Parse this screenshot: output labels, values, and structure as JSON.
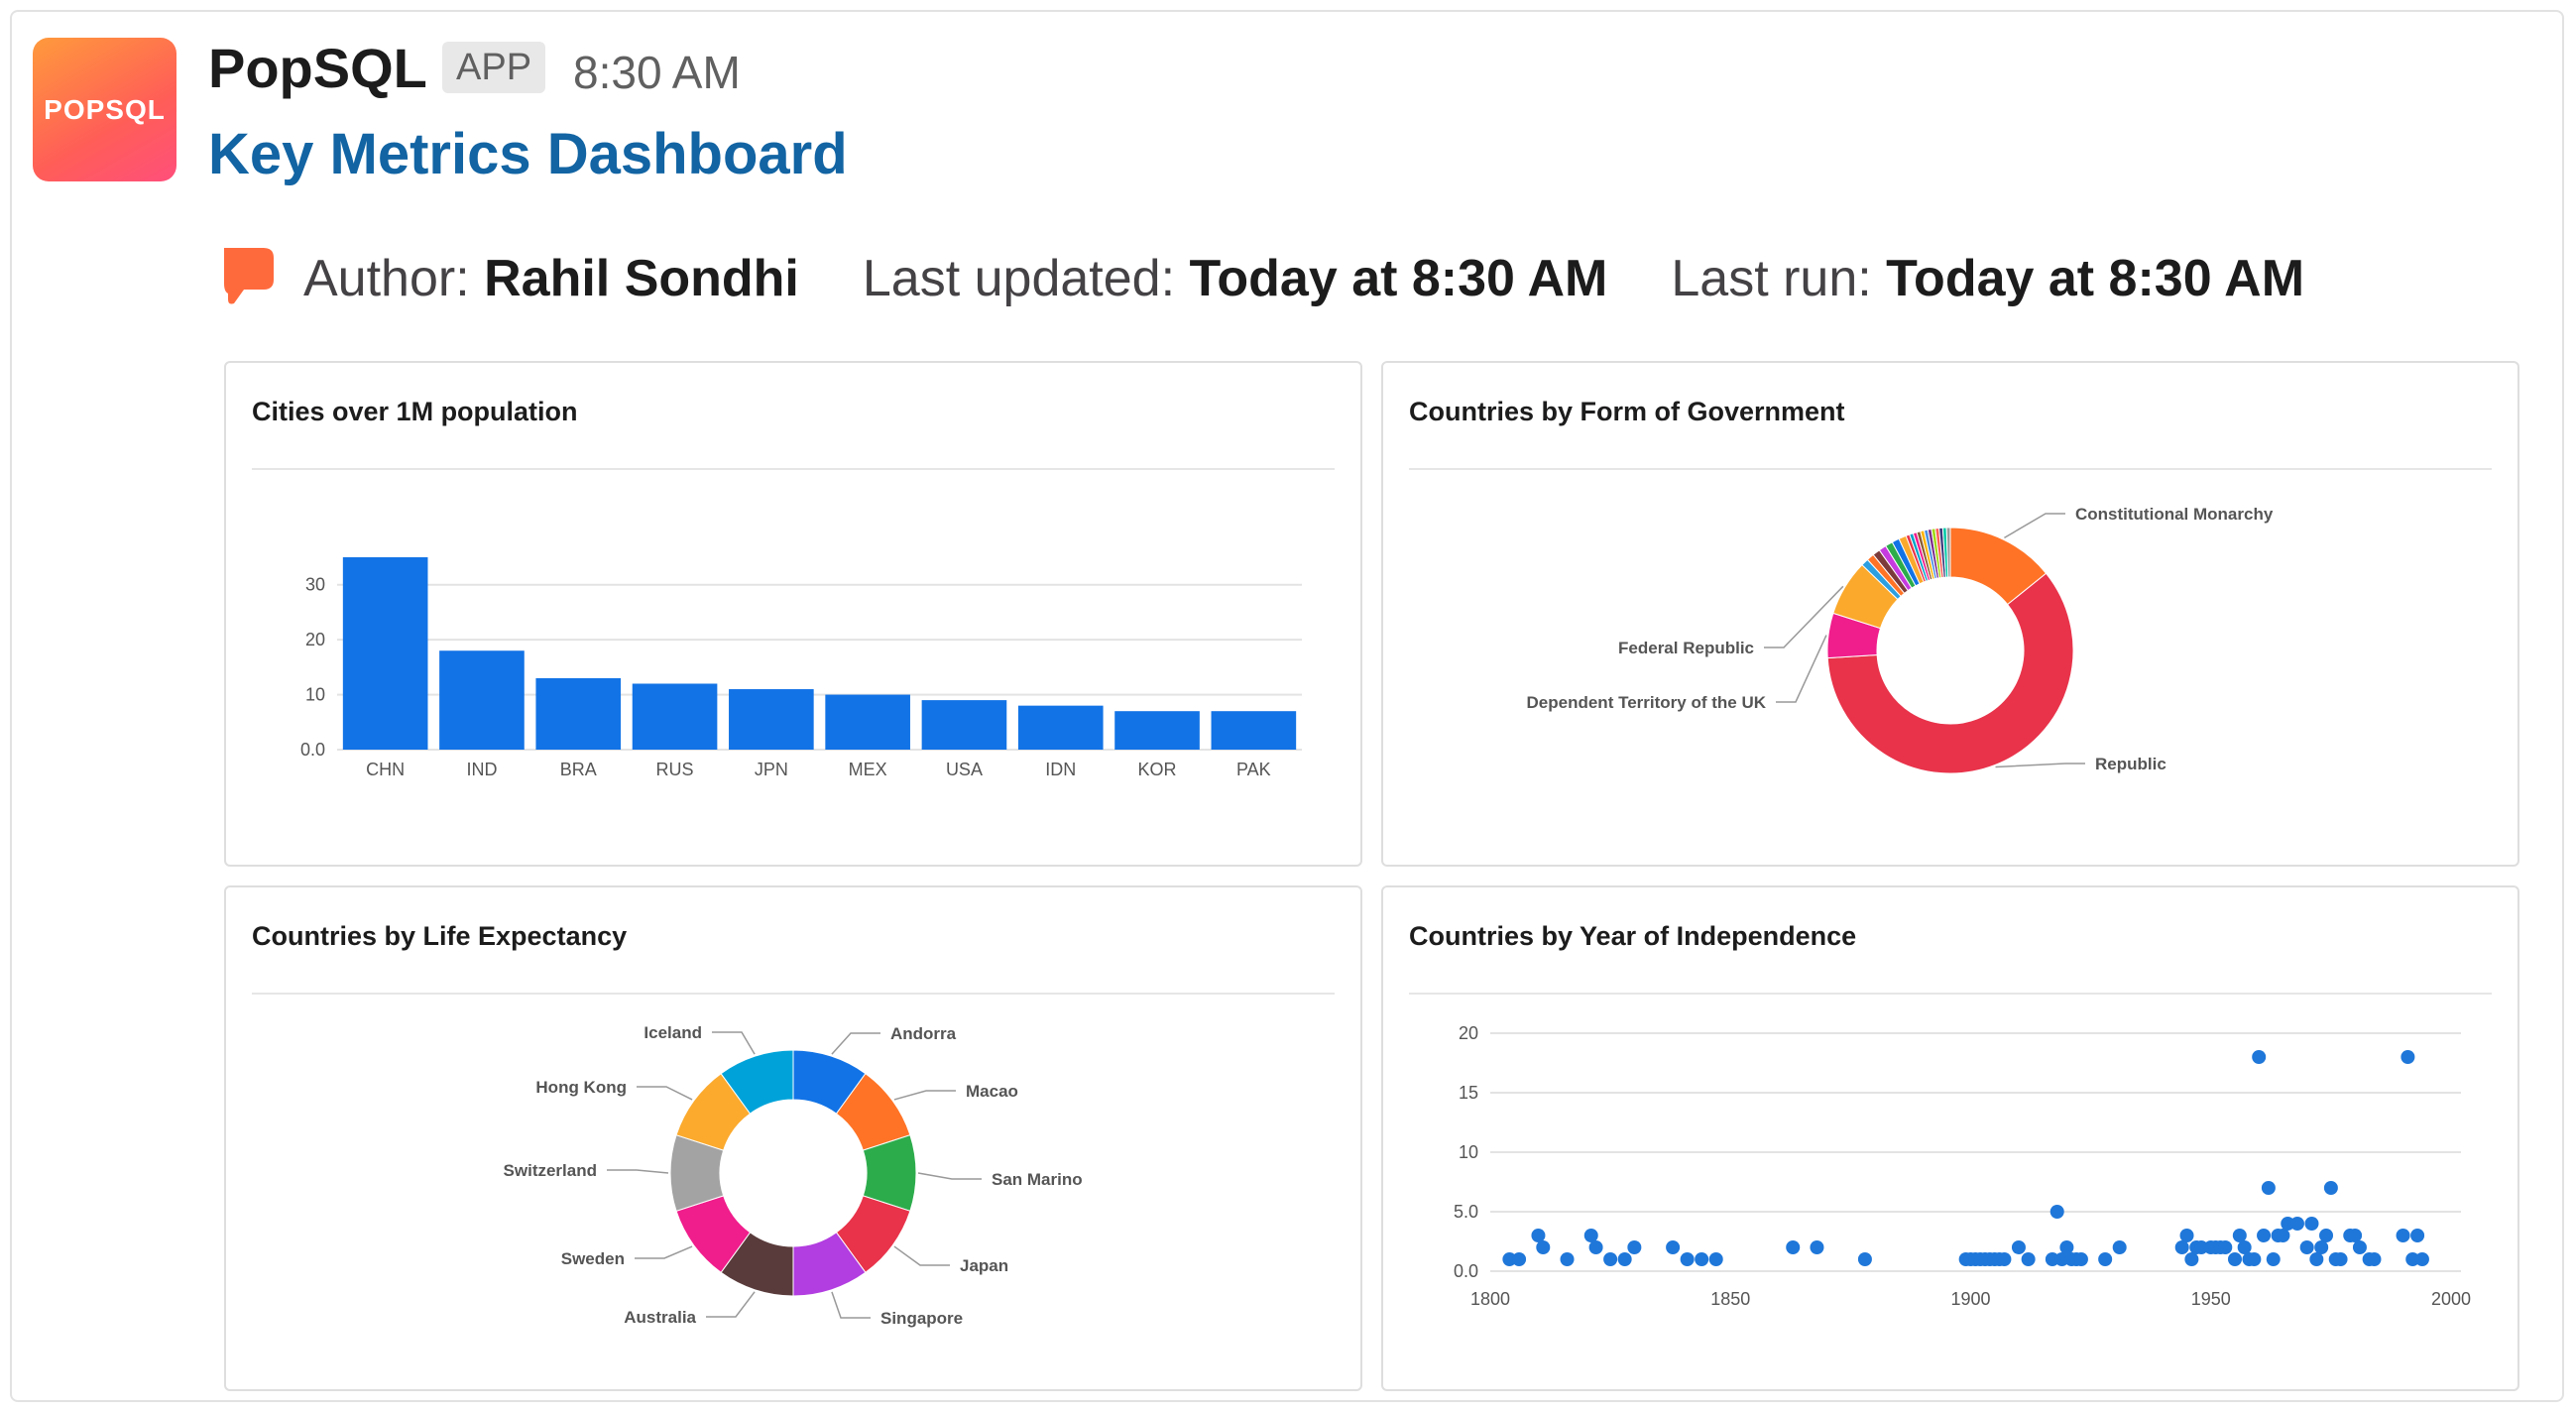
{
  "header": {
    "app_icon_text": "POPSQL",
    "app_name": "PopSQL",
    "app_badge": "APP",
    "time": "8:30 AM",
    "dashboard_link": "Key Metrics Dashboard"
  },
  "meta": {
    "author_label": "Author:",
    "author": "Rahil Sondhi",
    "updated_label": "Last updated:",
    "updated": "Today at 8:30 AM",
    "run_label": "Last run:",
    "run": "Today at 8:30 AM"
  },
  "colors": {
    "link": "#1264a3",
    "bar": "#1273e6",
    "scatter": "#1f77d9"
  },
  "chart_data": [
    {
      "type": "bar",
      "title": "Cities over 1M population",
      "categories": [
        "CHN",
        "IND",
        "BRA",
        "RUS",
        "JPN",
        "MEX",
        "USA",
        "IDN",
        "KOR",
        "PAK"
      ],
      "values": [
        35,
        18,
        13,
        12,
        11,
        10,
        9,
        8,
        7,
        7
      ],
      "ylim": [
        0,
        35
      ],
      "yticks": [
        "0.0",
        "10",
        "20",
        "30"
      ],
      "grid": true
    },
    {
      "type": "pie",
      "title": "Countries by Form of Government",
      "donut": true,
      "labels": [
        "Republic",
        "Dependent Territory of the UK",
        "Federal Republic",
        "Constitutional Monarchy"
      ],
      "values": [
        122,
        12,
        15,
        29
      ],
      "colors": [
        "#e8334a",
        "#f01d8c",
        "#fba92c",
        "#ff7326"
      ],
      "other_slices": [
        2,
        2,
        2,
        2,
        2,
        2,
        2,
        1,
        1,
        1,
        1,
        1,
        1,
        1,
        1,
        1,
        1,
        1,
        1
      ],
      "other_colors": [
        "#2c9fe0",
        "#ff7326",
        "#7c3b3b",
        "#c63be0",
        "#2dac4c",
        "#1273e6",
        "#fba92c",
        "#e8334a",
        "#00a3c8",
        "#f01d8c",
        "#8b5e34",
        "#ffb400",
        "#4a90e2",
        "#7b2c8c",
        "#a0d911",
        "#ff5e57",
        "#3b3b7c",
        "#00c9a7",
        "#999999"
      ]
    },
    {
      "type": "pie",
      "title": "Countries by Life Expectancy",
      "donut": true,
      "labels": [
        "Andorra",
        "Macao",
        "San Marino",
        "Japan",
        "Singapore",
        "Australia",
        "Sweden",
        "Switzerland",
        "Hong Kong",
        "Iceland"
      ],
      "values": [
        1,
        1,
        1,
        1,
        1,
        1,
        1,
        1,
        1,
        1
      ],
      "colors": [
        "#1273e6",
        "#ff7326",
        "#2dac4c",
        "#e8334a",
        "#b23de0",
        "#5a3b3b",
        "#f01d8c",
        "#a3a3a3",
        "#fbaa2e",
        "#00a3d9"
      ]
    },
    {
      "type": "scatter",
      "title": "Countries by Year of Independence",
      "xlim": [
        1800,
        2000
      ],
      "ylim": [
        0,
        20
      ],
      "xticks": [
        "1800",
        "1850",
        "1900",
        "1950",
        "2000"
      ],
      "yticks": [
        "0.0",
        "5.0",
        "10",
        "15",
        "20"
      ],
      "points": [
        [
          1804,
          1
        ],
        [
          1806,
          1
        ],
        [
          1810,
          3
        ],
        [
          1811,
          2
        ],
        [
          1816,
          1
        ],
        [
          1821,
          3
        ],
        [
          1822,
          2
        ],
        [
          1825,
          1
        ],
        [
          1828,
          1
        ],
        [
          1830,
          2
        ],
        [
          1838,
          2
        ],
        [
          1841,
          1
        ],
        [
          1844,
          1
        ],
        [
          1847,
          1
        ],
        [
          1863,
          2
        ],
        [
          1868,
          2
        ],
        [
          1878,
          1
        ],
        [
          1899,
          1
        ],
        [
          1900,
          1
        ],
        [
          1901,
          1
        ],
        [
          1902,
          1
        ],
        [
          1903,
          1
        ],
        [
          1904,
          1
        ],
        [
          1905,
          1
        ],
        [
          1906,
          1
        ],
        [
          1907,
          1
        ],
        [
          1910,
          2
        ],
        [
          1912,
          1
        ],
        [
          1917,
          1
        ],
        [
          1918,
          5
        ],
        [
          1919,
          1
        ],
        [
          1920,
          2
        ],
        [
          1921,
          1
        ],
        [
          1922,
          1
        ],
        [
          1923,
          1
        ],
        [
          1928,
          1
        ],
        [
          1931,
          2
        ],
        [
          1944,
          2
        ],
        [
          1945,
          3
        ],
        [
          1946,
          1
        ],
        [
          1947,
          2
        ],
        [
          1948,
          2
        ],
        [
          1950,
          2
        ],
        [
          1951,
          2
        ],
        [
          1952,
          2
        ],
        [
          1953,
          2
        ],
        [
          1955,
          1
        ],
        [
          1956,
          3
        ],
        [
          1957,
          2
        ],
        [
          1958,
          1
        ],
        [
          1959,
          1
        ],
        [
          1960,
          18
        ],
        [
          1961,
          3
        ],
        [
          1962,
          7
        ],
        [
          1963,
          1
        ],
        [
          1964,
          3
        ],
        [
          1965,
          3
        ],
        [
          1966,
          4
        ],
        [
          1968,
          4
        ],
        [
          1970,
          2
        ],
        [
          1971,
          4
        ],
        [
          1972,
          1
        ],
        [
          1973,
          2
        ],
        [
          1974,
          3
        ],
        [
          1975,
          7
        ],
        [
          1976,
          1
        ],
        [
          1977,
          1
        ],
        [
          1979,
          3
        ],
        [
          1980,
          3
        ],
        [
          1981,
          2
        ],
        [
          1983,
          1
        ],
        [
          1984,
          1
        ],
        [
          1990,
          3
        ],
        [
          1991,
          18
        ],
        [
          1992,
          1
        ],
        [
          1993,
          3
        ],
        [
          1994,
          1
        ]
      ]
    }
  ]
}
